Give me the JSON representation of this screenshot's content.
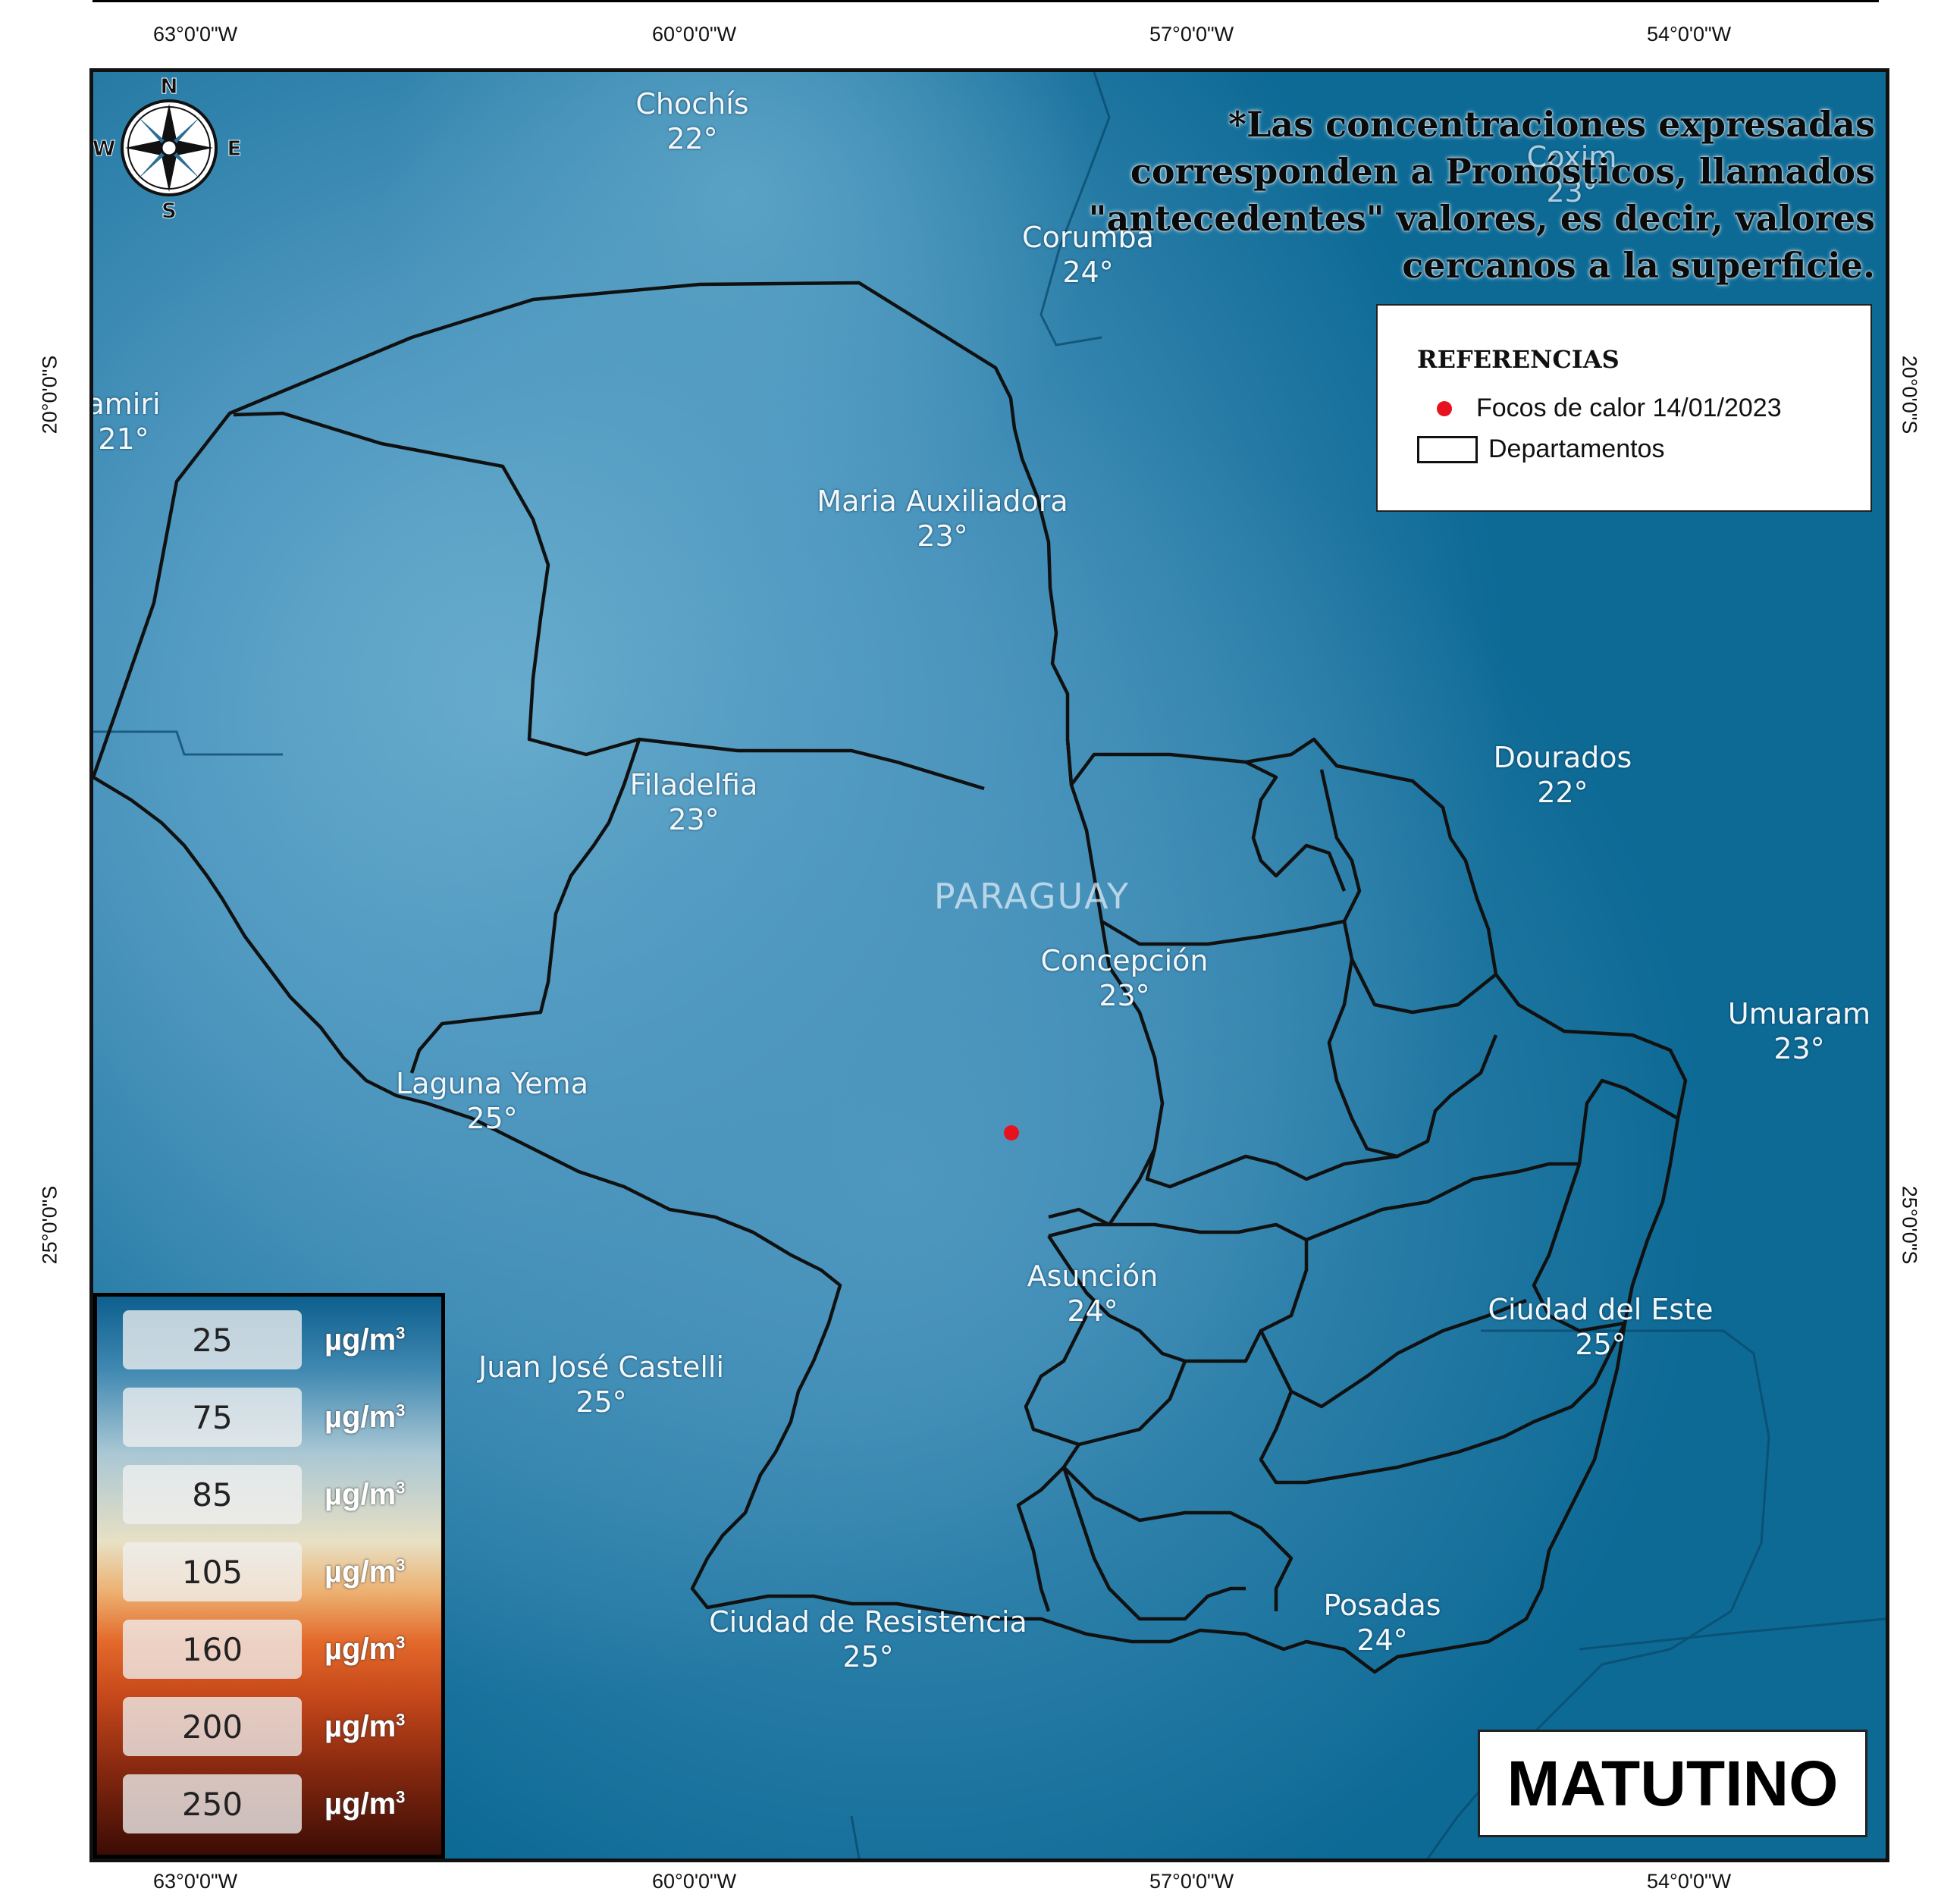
{
  "grid_labels": {
    "longitudes": [
      "63°0'0\"W",
      "60°0'0\"W",
      "57°0'0\"W",
      "54°0'0\"W"
    ],
    "latitudes": [
      "20°0'0\"S",
      "25°0'0\"S"
    ]
  },
  "country_label": "PARAGUAY",
  "cities": [
    {
      "name": "Chochís",
      "temp": "22°"
    },
    {
      "name": "Corumba",
      "temp": "24°"
    },
    {
      "name": "Maria Auxiliadora",
      "temp": "23°"
    },
    {
      "name": "Filadelfia",
      "temp": "23°"
    },
    {
      "name": "Concepción",
      "temp": "23°"
    },
    {
      "name": "Dourados",
      "temp": "22°"
    },
    {
      "name": "Umuaram",
      "temp": "23°"
    },
    {
      "name": "Laguna Yema",
      "temp": "25°"
    },
    {
      "name": "Asunción",
      "temp": "24°"
    },
    {
      "name": "Ciudad del Este",
      "temp": "25°"
    },
    {
      "name": "Juan José Castelli",
      "temp": "25°"
    },
    {
      "name": "Ciudad de Resistencia",
      "temp": "25°"
    },
    {
      "name": "Posadas",
      "temp": "24°"
    },
    {
      "name": "Coxim",
      "temp": "23°"
    },
    {
      "name": "amiri",
      "temp": "21°"
    }
  ],
  "note": "*Las concentraciones expresadas corresponden a Pronósticos, llamados \"antecedentes\" valores, es decir, valores cercanos a la superficie.",
  "legend": {
    "title": "REFERENCIAS",
    "hotspots_label": "Focos de calor 14/01/2023",
    "departments_label": "Departamentos",
    "hotspot_color": "#e8121e"
  },
  "concentration_scale": {
    "unit": "µg/m",
    "unit_superscript": "3",
    "values": [
      "25",
      "75",
      "85",
      "105",
      "160",
      "200",
      "250"
    ]
  },
  "compass": {
    "n": "N",
    "s": "S",
    "e": "E",
    "w": "W"
  },
  "period_label": "MATUTINO",
  "colors": {
    "map_background": "#0d6a95",
    "boundary": "#111111"
  }
}
